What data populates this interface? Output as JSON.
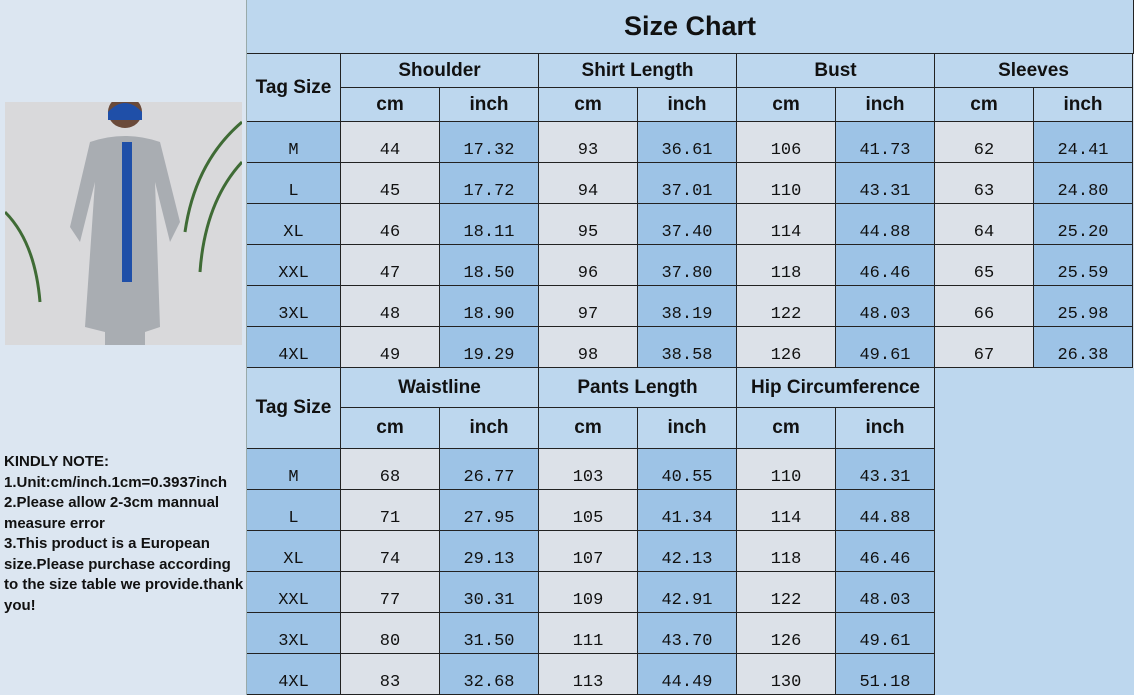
{
  "title": "Size Chart",
  "note": [
    "KINDLY NOTE:",
    "1.Unit:cm/inch.1cm=0.3937inch",
    "2.Please allow 2-3cm mannual measure error",
    "3.This product is a European size.Please purchase according to the size table we provide.thank you!"
  ],
  "colors": {
    "header": "#bdd7ee",
    "accent": "#9dc3e6",
    "cell": "#dce1e8"
  },
  "tables": [
    {
      "tag_label": "Tag Size",
      "groups": [
        "Shoulder",
        "Shirt Length",
        "Bust",
        "Sleeves"
      ],
      "units": [
        "cm",
        "inch"
      ],
      "rows": [
        [
          "M",
          "44",
          "17.32",
          "93",
          "36.61",
          "106",
          "41.73",
          "62",
          "24.41"
        ],
        [
          "L",
          "45",
          "17.72",
          "94",
          "37.01",
          "110",
          "43.31",
          "63",
          "24.80"
        ],
        [
          "XL",
          "46",
          "18.11",
          "95",
          "37.40",
          "114",
          "44.88",
          "64",
          "25.20"
        ],
        [
          "XXL",
          "47",
          "18.50",
          "96",
          "37.80",
          "118",
          "46.46",
          "65",
          "25.59"
        ],
        [
          "3XL",
          "48",
          "18.90",
          "97",
          "38.19",
          "122",
          "48.03",
          "66",
          "25.98"
        ],
        [
          "4XL",
          "49",
          "19.29",
          "98",
          "38.58",
          "126",
          "49.61",
          "67",
          "26.38"
        ]
      ]
    },
    {
      "tag_label": "Tag Size",
      "groups": [
        "Waistline",
        "Pants Length",
        "Hip Circumference"
      ],
      "units": [
        "cm",
        "inch"
      ],
      "rows": [
        [
          "M",
          "68",
          "26.77",
          "103",
          "40.55",
          "110",
          "43.31"
        ],
        [
          "L",
          "71",
          "27.95",
          "105",
          "41.34",
          "114",
          "44.88"
        ],
        [
          "XL",
          "74",
          "29.13",
          "107",
          "42.13",
          "118",
          "46.46"
        ],
        [
          "XXL",
          "77",
          "30.31",
          "109",
          "42.91",
          "122",
          "48.03"
        ],
        [
          "3XL",
          "80",
          "31.50",
          "111",
          "43.70",
          "126",
          "49.61"
        ],
        [
          "4XL",
          "83",
          "32.68",
          "113",
          "44.49",
          "130",
          "51.18"
        ]
      ]
    }
  ]
}
